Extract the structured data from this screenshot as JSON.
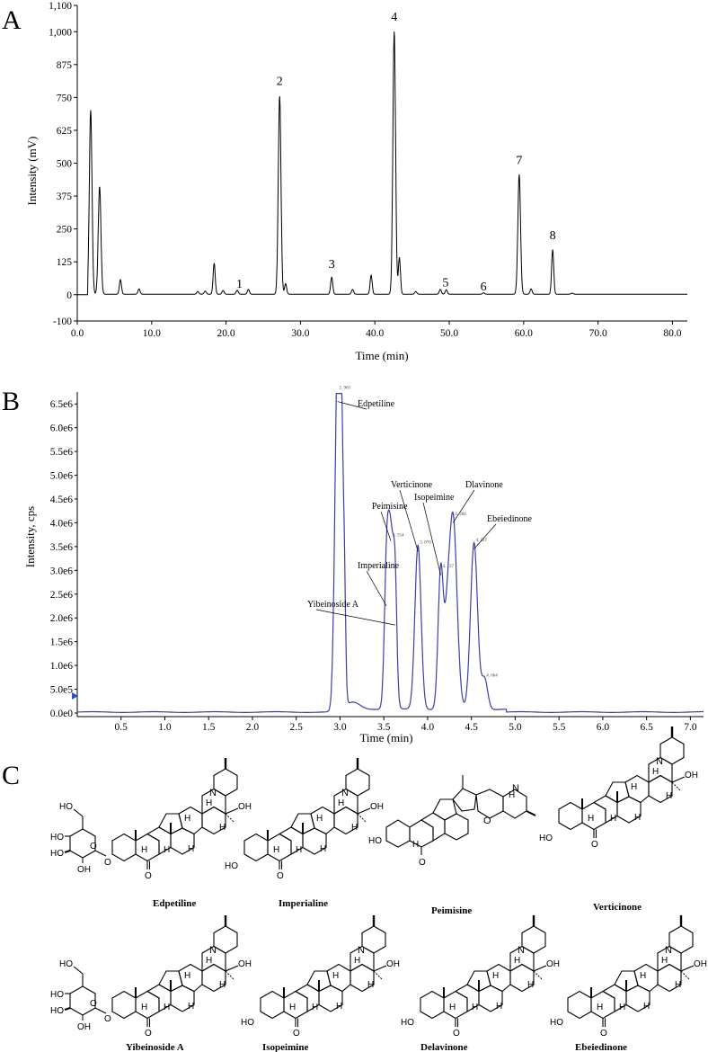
{
  "panels": {
    "a": "A",
    "b": "B",
    "c": "C"
  },
  "chart_data": [
    {
      "type": "line",
      "panel": "A",
      "xlabel": "Time (min)",
      "ylabel": "Intensity (mV)",
      "xlim": [
        0,
        82
      ],
      "ylim": [
        -100,
        1100
      ],
      "xticks": [
        "0.0",
        "10.0",
        "20.0",
        "30.0",
        "40.0",
        "50.0",
        "60.0",
        "70.0",
        "80.0"
      ],
      "yticks": [
        "-100",
        "0",
        "125",
        "250",
        "375",
        "500",
        "625",
        "750",
        "875",
        "1,000",
        "1,100"
      ],
      "peaks": [
        {
          "t": 1.8,
          "h": 700
        },
        {
          "t": 3.0,
          "h": 410
        },
        {
          "t": 5.8,
          "h": 55
        },
        {
          "t": 8.3,
          "h": 20
        },
        {
          "t": 16.2,
          "h": 10
        },
        {
          "t": 17.2,
          "h": 12
        },
        {
          "t": 18.4,
          "h": 118
        },
        {
          "t": 19.6,
          "h": 14
        },
        {
          "t": 21.5,
          "h": 15
        },
        {
          "t": 23.0,
          "h": 18
        },
        {
          "t": 27.2,
          "h": 755
        },
        {
          "t": 28.0,
          "h": 40
        },
        {
          "t": 34.2,
          "h": 65
        },
        {
          "t": 37.0,
          "h": 18
        },
        {
          "t": 39.5,
          "h": 72
        },
        {
          "t": 42.6,
          "h": 1000
        },
        {
          "t": 43.3,
          "h": 140
        },
        {
          "t": 45.5,
          "h": 10
        },
        {
          "t": 48.8,
          "h": 18
        },
        {
          "t": 49.6,
          "h": 17
        },
        {
          "t": 54.6,
          "h": 5
        },
        {
          "t": 59.4,
          "h": 455
        },
        {
          "t": 61.0,
          "h": 20
        },
        {
          "t": 63.9,
          "h": 170
        },
        {
          "t": 66.5,
          "h": 4
        }
      ],
      "peak_labels": [
        {
          "label": "1",
          "t": 21.8,
          "y": 20
        },
        {
          "label": "2",
          "t": 27.2,
          "y": 790
        },
        {
          "label": "3",
          "t": 34.2,
          "y": 95
        },
        {
          "label": "4",
          "t": 42.6,
          "y": 1035
        },
        {
          "label": "5",
          "t": 49.5,
          "y": 25
        },
        {
          "label": "6",
          "t": 54.6,
          "y": 10
        },
        {
          "label": "7",
          "t": 59.4,
          "y": 490
        },
        {
          "label": "8",
          "t": 63.9,
          "y": 205
        }
      ],
      "grid": false
    },
    {
      "type": "line",
      "panel": "B",
      "xlabel": "Time (min)",
      "ylabel": "Intensity, cps",
      "xlim": [
        0,
        7.15
      ],
      "ylim": [
        0,
        6750000.0
      ],
      "xticks": [
        "0.5",
        "1.0",
        "1.5",
        "2.0",
        "2.5",
        "3.0",
        "3.5",
        "4.0",
        "4.5",
        "5.0",
        "5.5",
        "6.0",
        "6.5",
        "7.0"
      ],
      "yticks": [
        "0.0e0",
        "5.0e5",
        "1.0e6",
        "1.5e6",
        "2.0e6",
        "2.5e6",
        "3.0e6",
        "3.5e6",
        "4.0e6",
        "4.5e6",
        "5.0e6",
        "5.5e6",
        "6.0e6",
        "6.5e6"
      ],
      "color": "#3b3fae",
      "peaks": [
        {
          "t": 2.97,
          "h": 6700000.0,
          "w": 0.03
        },
        {
          "t": 3.01,
          "h": 5400000.0,
          "w": 0.025
        },
        {
          "t": 3.05,
          "h": 1800000.0,
          "w": 0.015
        },
        {
          "t": 3.15,
          "h": 150000.0,
          "w": 0.08
        },
        {
          "t": 3.53,
          "h": 2300000.0,
          "w": 0.025
        },
        {
          "t": 3.58,
          "h": 3600000.0,
          "w": 0.035
        },
        {
          "t": 3.63,
          "h": 1900000.0,
          "w": 0.02
        },
        {
          "t": 3.89,
          "h": 3450000.0,
          "w": 0.035
        },
        {
          "t": 4.15,
          "h": 2950000.0,
          "w": 0.03
        },
        {
          "t": 4.29,
          "h": 4050000.0,
          "w": 0.045
        },
        {
          "t": 4.22,
          "h": 1200000.0,
          "w": 0.03
        },
        {
          "t": 4.53,
          "h": 3500000.0,
          "w": 0.04
        },
        {
          "t": 4.65,
          "h": 650000.0,
          "w": 0.035
        }
      ],
      "annotations": [
        {
          "label": "Edpetiline",
          "t": 2.97,
          "tag": "2. 965"
        },
        {
          "label": "Peimisine",
          "t": 3.58,
          "tag": "3. 554"
        },
        {
          "label": "Imperialine",
          "t": 3.53,
          "tag": ""
        },
        {
          "label": "Yibeinoside A",
          "t": 3.63,
          "tag": ""
        },
        {
          "label": "Verticinone",
          "t": 3.89,
          "tag": "3. 870"
        },
        {
          "label": "Isopeimine",
          "t": 4.15,
          "tag": "4. 137"
        },
        {
          "label": "Dlavinone",
          "t": 4.29,
          "tag": "4. 266"
        },
        {
          "label": "Ebeiedinone",
          "t": 4.53,
          "tag": "4. 527"
        },
        {
          "label": "",
          "t": 4.65,
          "tag": "4. 664"
        }
      ],
      "grid": false
    }
  ],
  "structures": {
    "names": [
      "Edpetiline",
      "Imperialine",
      "Peimisine",
      "Verticinone",
      "Yibeinoside A",
      "Isopeimine",
      "Delavinone",
      "Ebeiedinone"
    ]
  }
}
